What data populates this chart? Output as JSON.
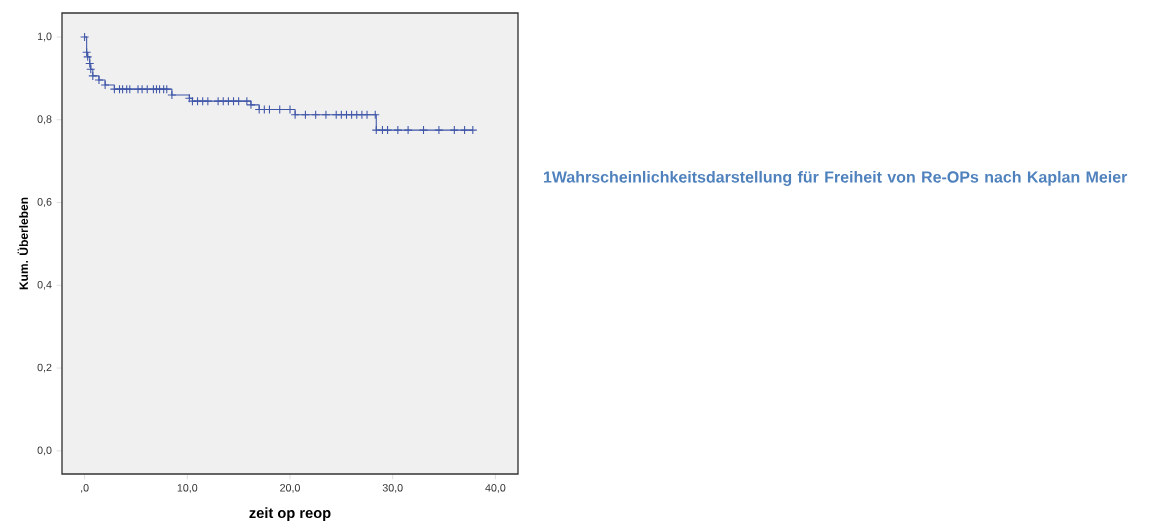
{
  "chart_data": {
    "type": "step",
    "xlabel": "zeit op reop",
    "ylabel": "Kum. Überleben",
    "annotations": [
      "1Wahrscheinlichkeitsdarstellung für Freiheit von Re-OPs nach Kaplan Meier"
    ],
    "xlim": [
      -2.2,
      42.2
    ],
    "ylim": [
      -0.056,
      1.058
    ],
    "xticks": [
      {
        "value": 0,
        "label": ",0"
      },
      {
        "value": 10,
        "label": "10,0"
      },
      {
        "value": 20,
        "label": "20,0"
      },
      {
        "value": 30,
        "label": "30,0"
      },
      {
        "value": 40,
        "label": "40,0"
      }
    ],
    "yticks": [
      {
        "value": 0,
        "label": "0,0"
      },
      {
        "value": 0.2,
        "label": "0,2"
      },
      {
        "value": 0.4,
        "label": "0,4"
      },
      {
        "value": 0.6,
        "label": "0,6"
      },
      {
        "value": 0.8,
        "label": "0,8"
      },
      {
        "value": 1.0,
        "label": "1,0"
      }
    ],
    "grid": false,
    "marker": "cross",
    "line_style": "solid",
    "series": [
      {
        "color": "#3f56a8",
        "x": [
          0,
          0.2,
          0.3,
          0.5,
          0.6,
          0.8,
          1.4,
          2.0,
          2.9,
          3.4,
          3.7,
          4.1,
          4.4,
          5.2,
          5.6,
          6.1,
          6.7,
          7.0,
          7.3,
          7.7,
          8.0,
          8.5,
          10.2,
          10.5,
          11.0,
          11.5,
          12.0,
          13.0,
          13.5,
          14.0,
          14.5,
          15.0,
          15.8,
          16.2,
          17.0,
          17.5,
          18.0,
          19.0,
          20.0,
          20.5,
          21.5,
          22.5,
          23.5,
          24.5,
          25.0,
          25.5,
          26.0,
          26.5,
          27.0,
          27.5,
          28.3,
          28.4,
          29.0,
          29.5,
          30.5,
          31.5,
          33.0,
          34.5,
          36.0,
          37.0,
          37.8
        ],
        "values": [
          1.0,
          0.963,
          0.952,
          0.936,
          0.922,
          0.906,
          0.896,
          0.884,
          0.874,
          0.874,
          0.874,
          0.874,
          0.874,
          0.874,
          0.874,
          0.874,
          0.874,
          0.874,
          0.874,
          0.874,
          0.874,
          0.86,
          0.852,
          0.845,
          0.845,
          0.845,
          0.845,
          0.845,
          0.845,
          0.845,
          0.845,
          0.845,
          0.845,
          0.836,
          0.825,
          0.825,
          0.825,
          0.825,
          0.825,
          0.812,
          0.812,
          0.812,
          0.812,
          0.812,
          0.812,
          0.812,
          0.812,
          0.812,
          0.812,
          0.812,
          0.812,
          0.775,
          0.775,
          0.775,
          0.775,
          0.775,
          0.775,
          0.775,
          0.775,
          0.775,
          0.775
        ]
      }
    ]
  }
}
